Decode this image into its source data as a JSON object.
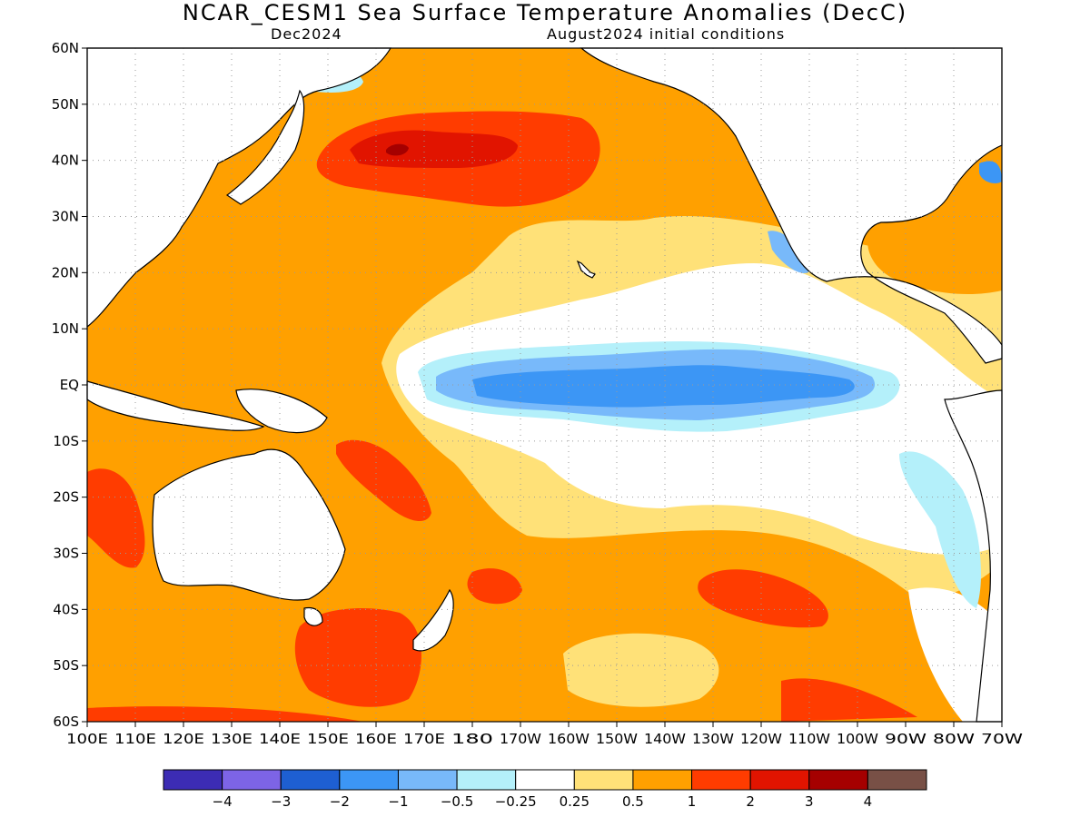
{
  "title": "NCAR_CESM1 Sea Surface Temperature Anomalies (DecC)",
  "valid_month": "Dec2024",
  "init_label": "August2024 initial conditions",
  "lat_labels": [
    "60N",
    "50N",
    "40N",
    "30N",
    "20N",
    "10N",
    "EQ",
    "10S",
    "20S",
    "30S",
    "40S",
    "50S",
    "60S"
  ],
  "lon_labels": [
    "100E",
    "110E",
    "120E",
    "130E",
    "140E",
    "150E",
    "160E",
    "170E",
    "180",
    "170W",
    "160W",
    "150W",
    "140W",
    "130W",
    "120W",
    "110W",
    "100W",
    "90W",
    "80W",
    "70W"
  ],
  "colorbar": {
    "colors": [
      "#3c2cb4",
      "#7d64e6",
      "#1e5fd2",
      "#3c96f5",
      "#78b9fa",
      "#b4f0fa",
      "#ffffff",
      "#ffe178",
      "#ffa000",
      "#ff3c00",
      "#e11400",
      "#a50000",
      "#785046"
    ],
    "labels": [
      "−4",
      "−3",
      "−2",
      "−1",
      "−0.5",
      "−0.25",
      "0.25",
      "0.5",
      "1",
      "2",
      "3",
      "4"
    ]
  }
}
